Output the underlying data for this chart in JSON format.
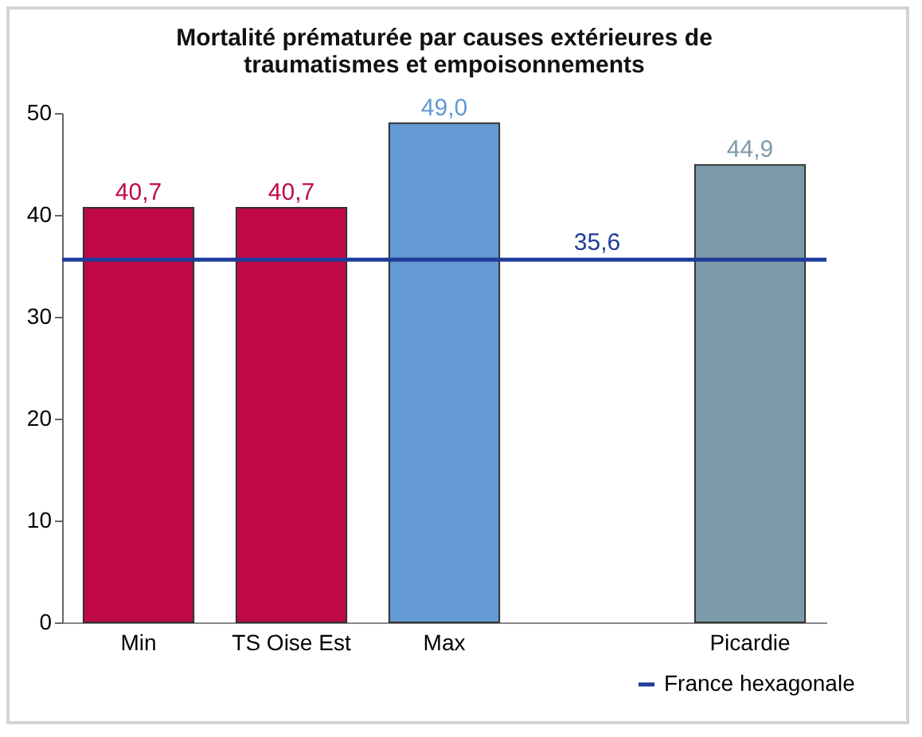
{
  "chart_data": {
    "type": "bar",
    "title": "Mortalité prématurée par causes extérieures de traumatismes et empoisonnements",
    "categories": [
      "Min",
      "TS Oise Est",
      "Max",
      null,
      "Picardie"
    ],
    "values": [
      40.7,
      40.7,
      49.0,
      null,
      44.9
    ],
    "colors": [
      "#c00a45",
      "#c00a45",
      "#6399d4",
      "#ffffff",
      "#7b9bab"
    ],
    "value_labels": [
      "40,7",
      "40,7",
      "49,0",
      null,
      "44,9"
    ],
    "ylim": [
      0,
      50
    ],
    "yticks": [
      0,
      10,
      20,
      30,
      40,
      50
    ],
    "grid": false,
    "ref_lines": [
      {
        "axis": "y",
        "value": 35.6,
        "label": "France hexagonale",
        "color": "#1f3c9a"
      }
    ],
    "annotations": [
      {
        "text": "35,6",
        "y": 35.6
      }
    ],
    "legend": "bottom right"
  }
}
